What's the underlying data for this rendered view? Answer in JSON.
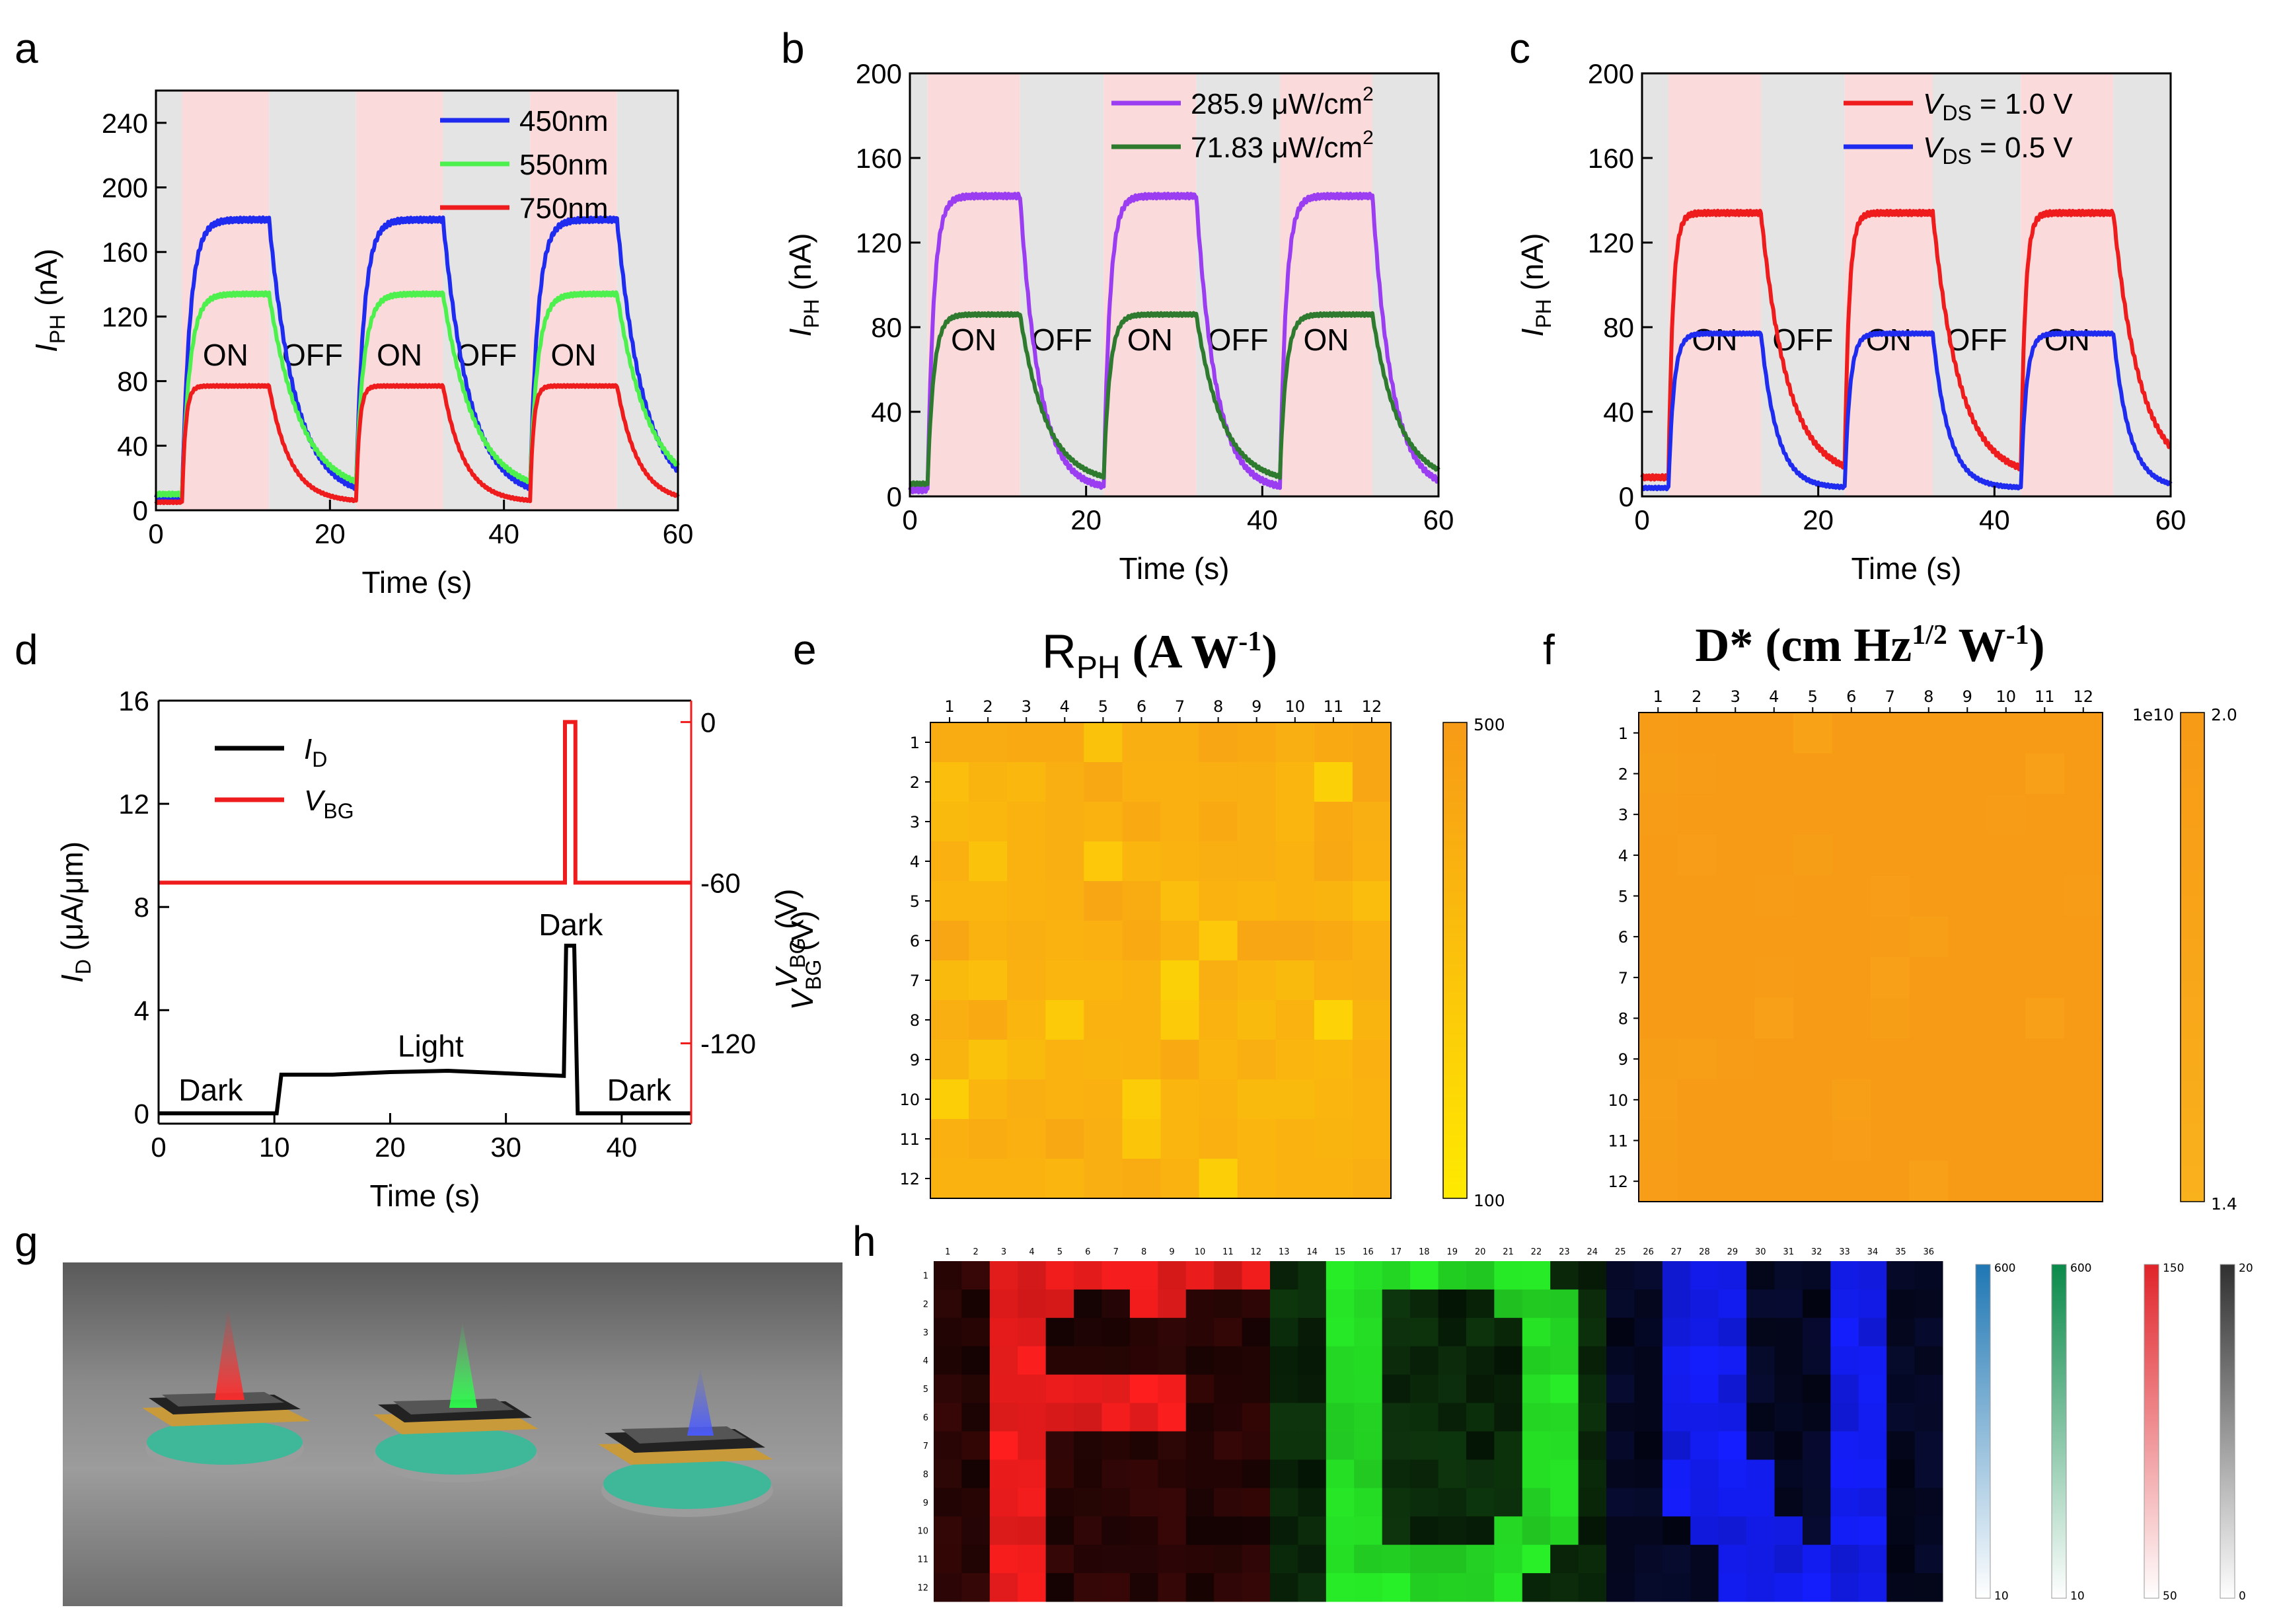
{
  "panel_labels": {
    "a": "a",
    "b": "b",
    "c": "c",
    "d": "d",
    "e": "e",
    "f": "f",
    "g": "g",
    "h": "h"
  },
  "colors": {
    "on_band": "#fadada",
    "off_band": "#e4e4e4",
    "blue": "#1f2cf0",
    "green": "#4ef04e",
    "red": "#ee1c1c",
    "violet": "#9b3df0",
    "dark_green": "#2e7a2e",
    "black": "#000000",
    "orange": "#f7a11a"
  },
  "chart_data": [
    {
      "id": "a",
      "type": "line",
      "title": "",
      "xlabel": "Time (s)",
      "ylabel_main": "I",
      "ylabel_sub": "PH",
      "ylabel_unit": " (nA)",
      "xlim": [
        0,
        60
      ],
      "ylim": [
        0,
        260
      ],
      "xticks": [
        "0",
        "20",
        "40",
        "60"
      ],
      "yticks": [
        "0",
        "40",
        "80",
        "120",
        "160",
        "200",
        "240"
      ],
      "segments": [
        {
          "state": "off",
          "from": 0,
          "to": 3,
          "label": ""
        },
        {
          "state": "on",
          "from": 3,
          "to": 13,
          "label": "ON"
        },
        {
          "state": "off",
          "from": 13,
          "to": 23,
          "label": "OFF"
        },
        {
          "state": "on",
          "from": 23,
          "to": 33,
          "label": "ON"
        },
        {
          "state": "off",
          "from": 33,
          "to": 43,
          "label": "OFF"
        },
        {
          "state": "on",
          "from": 43,
          "to": 53,
          "label": "ON"
        },
        {
          "state": "off",
          "from": 53,
          "to": 60,
          "label": ""
        }
      ],
      "series": [
        {
          "name": "450nm",
          "color": "#1f2cf0",
          "on_level": 180,
          "off_level": 8,
          "rise_tau": 0.9,
          "decay_tau": 3.0
        },
        {
          "name": "550nm",
          "color": "#4ef04e",
          "on_level": 134,
          "off_level": 10,
          "rise_tau": 0.9,
          "decay_tau": 3.6
        },
        {
          "name": "750nm",
          "color": "#ee1c1c",
          "on_level": 77,
          "off_level": 5,
          "rise_tau": 0.4,
          "decay_tau": 2.4
        }
      ]
    },
    {
      "id": "b",
      "type": "line",
      "title": "",
      "xlabel": "Time (s)",
      "ylabel_main": "I",
      "ylabel_sub": "PH",
      "ylabel_unit": " (nA)",
      "xlim": [
        0,
        60
      ],
      "ylim": [
        0,
        200
      ],
      "xticks": [
        "0",
        "20",
        "40",
        "60"
      ],
      "yticks": [
        "0",
        "40",
        "80",
        "120",
        "160",
        "200"
      ],
      "segments": [
        {
          "state": "off",
          "from": 0,
          "to": 2,
          "label": ""
        },
        {
          "state": "on",
          "from": 2,
          "to": 12.5,
          "label": "ON"
        },
        {
          "state": "off",
          "from": 12.5,
          "to": 22,
          "label": "OFF"
        },
        {
          "state": "on",
          "from": 22,
          "to": 32.5,
          "label": "ON"
        },
        {
          "state": "off",
          "from": 32.5,
          "to": 42,
          "label": "OFF"
        },
        {
          "state": "on",
          "from": 42,
          "to": 52.5,
          "label": "ON"
        },
        {
          "state": "off",
          "from": 52.5,
          "to": 60,
          "label": ""
        }
      ],
      "series": [
        {
          "name": "285.9 μW/cm",
          "sup": "2",
          "color": "#9b3df0",
          "on_level": 142,
          "off_level": 3,
          "rise_tau": 0.7,
          "decay_tau": 2.2
        },
        {
          "name": "71.83 μW/cm",
          "sup": "2",
          "color": "#2e7a2e",
          "on_level": 86,
          "off_level": 6,
          "rise_tau": 0.7,
          "decay_tau": 3.0
        }
      ]
    },
    {
      "id": "c",
      "type": "line",
      "title": "",
      "xlabel": "Time (s)",
      "ylabel_main": "I",
      "ylabel_sub": "PH",
      "ylabel_unit": " (nA)",
      "xlim": [
        0,
        60
      ],
      "ylim": [
        0,
        200
      ],
      "xticks": [
        "0",
        "20",
        "40",
        "60"
      ],
      "yticks": [
        "0",
        "40",
        "80",
        "120",
        "160",
        "200"
      ],
      "segments": [
        {
          "state": "off",
          "from": 0,
          "to": 3,
          "label": ""
        },
        {
          "state": "on",
          "from": 3,
          "to": 13.5,
          "label": "ON"
        },
        {
          "state": "off",
          "from": 13.5,
          "to": 23,
          "label": "OFF"
        },
        {
          "state": "on",
          "from": 23,
          "to": 33,
          "label": "ON"
        },
        {
          "state": "off",
          "from": 33,
          "to": 43,
          "label": "OFF"
        },
        {
          "state": "on",
          "from": 43,
          "to": 53.5,
          "label": "ON"
        },
        {
          "state": "off",
          "from": 53.5,
          "to": 60,
          "label": ""
        }
      ],
      "series": [
        {
          "name_prefix": "V",
          "name_sub": "DS",
          "name_suffix": " = 1.0 V",
          "color": "#ee1c1c",
          "on_level": 134,
          "off_level": 9,
          "rise_tau": 0.5,
          "decay_tau": 3.0
        },
        {
          "name_prefix": "V",
          "name_sub": "DS",
          "name_suffix": " = 0.5 V",
          "color": "#1f2cf0",
          "on_level": 77,
          "off_level": 4,
          "rise_tau": 0.6,
          "decay_tau": 1.8
        }
      ]
    },
    {
      "id": "d",
      "type": "line",
      "title": "",
      "xlabel": "Time (s)",
      "ylabel_main": "I",
      "ylabel_sub": "D",
      "ylabel_unit": " (μA/μm)",
      "y2label_main": "V",
      "y2label_sub": "BG",
      "y2label_unit": " (V)",
      "xlim": [
        0,
        46
      ],
      "ylim": [
        -0.4,
        16
      ],
      "y2lim": [
        -150,
        8
      ],
      "xticks": [
        "0",
        "10",
        "20",
        "30",
        "40"
      ],
      "yticks": [
        "0",
        "4",
        "8",
        "12",
        "16"
      ],
      "y2ticks": [
        "0",
        "-60",
        "-120"
      ],
      "series": [
        {
          "name_main": "I",
          "name_sub": "D",
          "color": "#000000",
          "points": [
            [
              0,
              0
            ],
            [
              10.2,
              0
            ],
            [
              10.6,
              1.5
            ],
            [
              15,
              1.5
            ],
            [
              20,
              1.6
            ],
            [
              25,
              1.65
            ],
            [
              30,
              1.55
            ],
            [
              35,
              1.45
            ],
            [
              35.2,
              6.5
            ],
            [
              35.9,
              6.5
            ],
            [
              36.2,
              0
            ],
            [
              46,
              0
            ]
          ]
        },
        {
          "name_main": "V",
          "name_sub": "BG",
          "color": "#ee1c1c",
          "axis": "right",
          "points": [
            [
              0,
              -60
            ],
            [
              35.1,
              -60
            ],
            [
              35.1,
              0
            ],
            [
              36.0,
              0
            ],
            [
              36.0,
              -60
            ],
            [
              46,
              -60
            ]
          ]
        }
      ],
      "annotations": [
        {
          "text": "Dark",
          "x": 4.5,
          "y": 0.5
        },
        {
          "text": "Light",
          "x": 23.5,
          "y": 2.2
        },
        {
          "text": "Dark",
          "x": 35.6,
          "y": 6.9
        },
        {
          "text": "Dark",
          "x": 41.5,
          "y": 0.5
        }
      ]
    },
    {
      "id": "e",
      "type": "heatmap",
      "title_main": "R",
      "title_sub": "PH",
      "title_rest": " (A W",
      "title_sup": "-1",
      "title_close": ")",
      "ylabel_main": "V",
      "ylabel_sub": "BG",
      "ylabel_unit": " (V)",
      "col_labels": [
        "1",
        "2",
        "3",
        "4",
        "5",
        "6",
        "7",
        "8",
        "9",
        "10",
        "11",
        "12"
      ],
      "row_labels": [
        "1",
        "2",
        "3",
        "4",
        "5",
        "6",
        "7",
        "8",
        "9",
        "10",
        "11",
        "12"
      ],
      "colorbar": {
        "max_label": "500",
        "min_label": "100",
        "min": 100,
        "max": 500,
        "low_color": "#ffea00",
        "high_color": "#f79a16"
      },
      "values": [
        [
          410,
          410,
          420,
          420,
          300,
          400,
          400,
          440,
          420,
          400,
          420,
          440
        ],
        [
          320,
          370,
          350,
          400,
          430,
          390,
          390,
          400,
          400,
          360,
          230,
          440
        ],
        [
          340,
          350,
          380,
          400,
          380,
          420,
          390,
          420,
          400,
          360,
          420,
          400
        ],
        [
          390,
          300,
          380,
          400,
          270,
          360,
          380,
          400,
          400,
          380,
          430,
          390
        ],
        [
          360,
          360,
          380,
          390,
          440,
          410,
          320,
          380,
          360,
          380,
          370,
          330
        ],
        [
          440,
          380,
          400,
          380,
          390,
          420,
          380,
          270,
          440,
          440,
          420,
          390
        ],
        [
          340,
          320,
          390,
          360,
          360,
          380,
          230,
          400,
          360,
          340,
          390,
          400
        ],
        [
          400,
          420,
          360,
          260,
          380,
          380,
          260,
          380,
          340,
          380,
          220,
          370
        ],
        [
          370,
          300,
          340,
          380,
          370,
          380,
          420,
          360,
          400,
          360,
          350,
          390
        ],
        [
          240,
          360,
          400,
          380,
          390,
          250,
          360,
          380,
          340,
          340,
          360,
          380
        ],
        [
          390,
          410,
          390,
          430,
          400,
          280,
          360,
          390,
          360,
          380,
          370,
          380
        ],
        [
          380,
          380,
          380,
          360,
          400,
          410,
          380,
          240,
          360,
          380,
          380,
          400
        ]
      ]
    },
    {
      "id": "f",
      "type": "heatmap",
      "title_main": "D* (cm Hz",
      "title_sup": "1/2",
      "title_rest": " W",
      "title_sup2": "-1",
      "title_close": ")",
      "col_labels": [
        "1",
        "2",
        "3",
        "4",
        "5",
        "6",
        "7",
        "8",
        "9",
        "10",
        "11",
        "12"
      ],
      "row_labels": [
        "1",
        "2",
        "3",
        "4",
        "5",
        "6",
        "7",
        "8",
        "9",
        "10",
        "11",
        "12"
      ],
      "colorbar": {
        "exp_label": "1e10",
        "max_label": "2.0",
        "min_label": "1.4",
        "min": 1.4,
        "max": 2.0,
        "low_color": "#f9b11c",
        "high_color": "#f79a16"
      },
      "values": [
        [
          1.96,
          1.99,
          1.99,
          1.99,
          1.8,
          1.99,
          1.99,
          1.99,
          1.99,
          1.99,
          1.99,
          1.99
        ],
        [
          1.9,
          1.96,
          1.99,
          1.99,
          1.99,
          1.99,
          1.99,
          1.99,
          1.99,
          1.99,
          1.82,
          1.99
        ],
        [
          1.96,
          1.99,
          1.99,
          1.99,
          1.99,
          1.99,
          1.99,
          1.99,
          1.99,
          1.96,
          1.99,
          1.99
        ],
        [
          1.99,
          1.92,
          1.99,
          1.99,
          1.9,
          1.99,
          1.99,
          1.99,
          1.99,
          1.99,
          1.99,
          1.99
        ],
        [
          1.99,
          1.99,
          1.99,
          1.96,
          1.99,
          1.99,
          1.93,
          1.99,
          1.99,
          1.99,
          1.99,
          1.96
        ],
        [
          1.99,
          1.99,
          1.99,
          1.99,
          1.99,
          1.99,
          1.96,
          1.86,
          1.99,
          1.99,
          1.99,
          1.99
        ],
        [
          1.99,
          1.99,
          1.99,
          1.96,
          1.99,
          1.99,
          1.84,
          1.99,
          1.99,
          1.99,
          1.99,
          1.99
        ],
        [
          1.99,
          1.99,
          1.99,
          1.84,
          1.99,
          1.99,
          1.9,
          1.99,
          1.99,
          1.99,
          1.84,
          1.99
        ],
        [
          1.9,
          1.86,
          1.96,
          1.99,
          1.99,
          1.99,
          1.99,
          1.99,
          1.99,
          1.99,
          1.99,
          1.99
        ],
        [
          1.86,
          1.99,
          1.99,
          1.99,
          1.99,
          1.86,
          1.99,
          1.99,
          1.99,
          1.99,
          1.99,
          1.99
        ],
        [
          1.9,
          1.99,
          1.99,
          1.99,
          1.99,
          1.92,
          1.99,
          1.99,
          1.99,
          1.99,
          1.99,
          1.99
        ],
        [
          1.92,
          1.99,
          1.99,
          1.99,
          1.99,
          1.99,
          1.99,
          1.84,
          1.99,
          1.99,
          1.99,
          1.99
        ]
      ]
    },
    {
      "id": "h",
      "type": "heatmap",
      "col_labels": [
        "1",
        "2",
        "3",
        "4",
        "5",
        "6",
        "7",
        "8",
        "9",
        "10",
        "11",
        "12",
        "13",
        "14",
        "15",
        "16",
        "17",
        "18",
        "19",
        "20",
        "21",
        "22",
        "23",
        "24",
        "25",
        "26",
        "27",
        "28",
        "29",
        "30",
        "31",
        "32",
        "33",
        "34",
        "35",
        "36"
      ],
      "row_labels": [
        "1",
        "2",
        "3",
        "4",
        "5",
        "6",
        "7",
        "8",
        "9",
        "10",
        "11",
        "12"
      ],
      "channels": [
        "red",
        "green",
        "blue",
        "gray"
      ],
      "letters": [
        "P",
        "D",
        "U"
      ],
      "colorbars": [
        {
          "name": "blue",
          "max_label": "600",
          "min_label": "10",
          "color": "#1f77b4"
        },
        {
          "name": "green",
          "max_label": "600",
          "min_label": "10",
          "color": "#0a8a4a"
        },
        {
          "name": "red",
          "max_label": "150",
          "min_label": "50",
          "color": "#e0242a"
        },
        {
          "name": "gray",
          "max_label": "20",
          "min_label": "0",
          "color": "#303030"
        }
      ]
    }
  ]
}
